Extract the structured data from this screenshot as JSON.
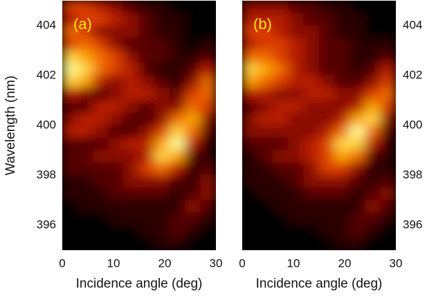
{
  "chart_data": [
    {
      "type": "heatmap",
      "title": "(a)",
      "xlabel": "Incidence angle (deg)",
      "ylabel": "Wavelength (nm)",
      "xlim": [
        0,
        30
      ],
      "ylim": [
        395,
        405
      ],
      "xticks": [
        0,
        10,
        20,
        30
      ],
      "yticks": [
        396,
        398,
        400,
        402,
        404
      ],
      "ytick_side": "left",
      "zlim": [
        0,
        9
      ],
      "colormap": [
        "#000000",
        "#4a0000",
        "#a80c00",
        "#e84a00",
        "#ffb000",
        "#ffff9a"
      ],
      "x": [
        1.5,
        4.5,
        7.5,
        10.5,
        13.5,
        16.5,
        19.5,
        22.5,
        25.5,
        28.5
      ],
      "y": [
        404.75,
        404.25,
        403.75,
        403.25,
        402.75,
        402.25,
        401.75,
        401.25,
        400.75,
        400.25,
        399.75,
        399.25,
        398.75,
        398.25,
        397.75,
        397.25,
        396.75,
        396.25,
        395.75,
        395.25
      ],
      "z": [
        [
          5,
          5,
          4,
          3,
          2,
          1,
          1,
          0,
          0,
          0
        ],
        [
          4,
          5,
          5,
          4,
          3,
          2,
          1,
          1,
          0,
          0
        ],
        [
          6,
          5,
          3,
          3,
          3,
          2,
          1,
          1,
          0,
          0
        ],
        [
          5,
          6,
          5,
          3,
          2,
          2,
          2,
          1,
          0,
          1
        ],
        [
          8,
          7,
          6,
          5,
          3,
          2,
          2,
          1,
          1,
          2
        ],
        [
          9,
          8,
          6,
          5,
          4,
          2,
          1,
          1,
          2,
          4
        ],
        [
          8,
          7,
          4,
          3,
          4,
          3,
          2,
          1,
          3,
          6
        ],
        [
          4,
          3,
          2,
          3,
          4,
          4,
          3,
          2,
          5,
          6
        ],
        [
          2,
          2,
          4,
          4,
          3,
          2,
          3,
          3,
          6,
          5
        ],
        [
          3,
          4,
          4,
          3,
          2,
          2,
          3,
          6,
          7,
          3
        ],
        [
          4,
          4,
          3,
          2,
          2,
          3,
          5,
          8,
          6,
          2
        ],
        [
          2,
          2,
          2,
          3,
          4,
          4,
          7,
          9,
          4,
          1
        ],
        [
          2,
          2,
          3,
          3,
          3,
          4,
          8,
          7,
          2,
          1
        ],
        [
          2,
          2,
          2,
          2,
          3,
          5,
          6,
          4,
          1,
          2
        ],
        [
          1,
          1,
          2,
          2,
          3,
          3,
          3,
          2,
          1,
          3
        ],
        [
          1,
          1,
          1,
          2,
          2,
          2,
          2,
          1,
          2,
          3
        ],
        [
          0,
          1,
          1,
          1,
          1,
          1,
          1,
          1,
          3,
          2
        ],
        [
          0,
          0,
          0,
          1,
          1,
          1,
          1,
          2,
          2,
          1
        ],
        [
          0,
          0,
          0,
          0,
          0,
          1,
          1,
          2,
          1,
          0
        ],
        [
          0,
          0,
          0,
          0,
          0,
          0,
          1,
          1,
          0,
          0
        ]
      ]
    },
    {
      "type": "heatmap",
      "title": "(b)",
      "xlabel": "Incidence angle (deg)",
      "xlim": [
        0,
        30
      ],
      "ylim": [
        395,
        405
      ],
      "xticks": [
        0,
        10,
        20,
        30
      ],
      "yticks": [
        396,
        398,
        400,
        402,
        404
      ],
      "ytick_side": "right",
      "zlim": [
        0,
        9
      ],
      "colormap": [
        "#000000",
        "#4a0000",
        "#a80c00",
        "#e84a00",
        "#ffb000",
        "#ffff9a"
      ],
      "x": [
        1.5,
        4.5,
        7.5,
        10.5,
        13.5,
        16.5,
        19.5,
        22.5,
        25.5,
        28.5
      ],
      "y": [
        404.75,
        404.25,
        403.75,
        403.25,
        402.75,
        402.25,
        401.75,
        401.25,
        400.75,
        400.25,
        399.75,
        399.25,
        398.75,
        398.25,
        397.75,
        397.25,
        396.75,
        396.25,
        395.75,
        395.25
      ],
      "z": [
        [
          3,
          3,
          3,
          2,
          2,
          1,
          1,
          0,
          0,
          0
        ],
        [
          4,
          4,
          4,
          3,
          2,
          2,
          1,
          1,
          0,
          0
        ],
        [
          5,
          5,
          4,
          3,
          3,
          2,
          1,
          1,
          0,
          0
        ],
        [
          4,
          5,
          5,
          4,
          3,
          2,
          2,
          1,
          1,
          1
        ],
        [
          6,
          6,
          5,
          4,
          3,
          2,
          2,
          1,
          1,
          2
        ],
        [
          8,
          7,
          6,
          4,
          3,
          2,
          2,
          1,
          2,
          4
        ],
        [
          7,
          6,
          5,
          4,
          4,
          3,
          2,
          2,
          3,
          5
        ],
        [
          4,
          4,
          3,
          3,
          4,
          4,
          3,
          3,
          5,
          6
        ],
        [
          2,
          3,
          4,
          4,
          3,
          3,
          3,
          4,
          7,
          5
        ],
        [
          3,
          4,
          4,
          3,
          3,
          3,
          4,
          7,
          8,
          3
        ],
        [
          3,
          3,
          3,
          3,
          3,
          4,
          6,
          9,
          6,
          2
        ],
        [
          2,
          2,
          2,
          3,
          4,
          5,
          8,
          8,
          4,
          1
        ],
        [
          1,
          2,
          3,
          3,
          4,
          5,
          7,
          6,
          2,
          1
        ],
        [
          1,
          1,
          2,
          2,
          3,
          5,
          5,
          3,
          1,
          1
        ],
        [
          1,
          1,
          1,
          2,
          3,
          3,
          3,
          2,
          1,
          2
        ],
        [
          0,
          1,
          1,
          1,
          2,
          2,
          2,
          1,
          2,
          3
        ],
        [
          0,
          0,
          1,
          1,
          1,
          1,
          1,
          1,
          3,
          2
        ],
        [
          0,
          0,
          0,
          1,
          1,
          1,
          1,
          2,
          2,
          1
        ],
        [
          0,
          0,
          0,
          0,
          0,
          1,
          1,
          2,
          1,
          0
        ],
        [
          0,
          0,
          0,
          0,
          0,
          0,
          1,
          1,
          0,
          0
        ]
      ]
    }
  ]
}
